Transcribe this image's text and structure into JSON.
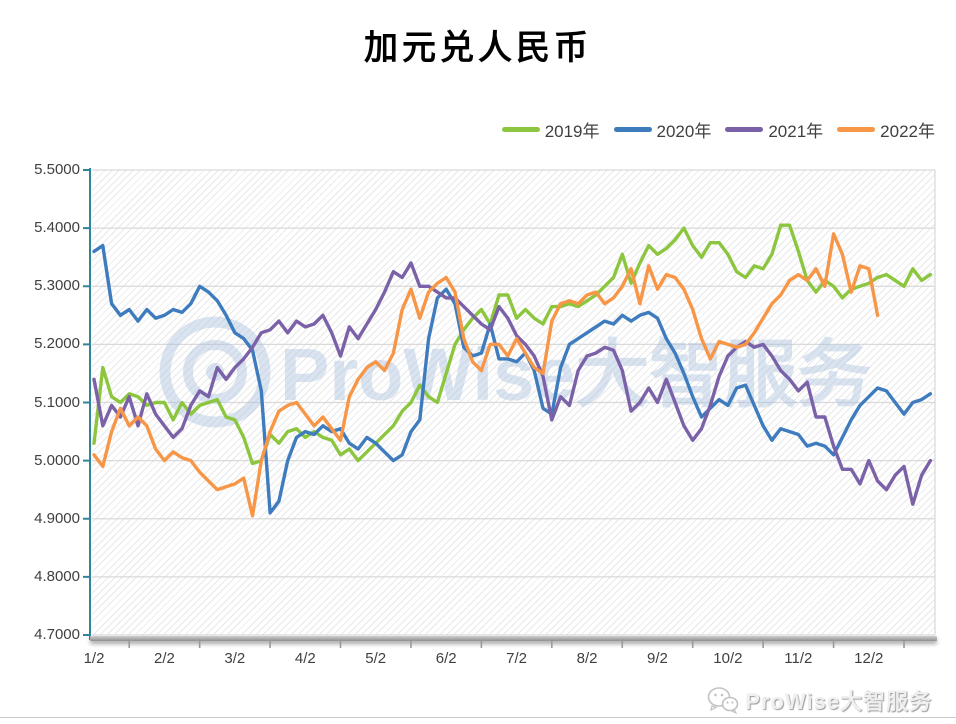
{
  "title": "加元兑人民币",
  "legend": [
    {
      "label": "2019年",
      "color": "#8CC63F"
    },
    {
      "label": "2020年",
      "color": "#3E7CBE"
    },
    {
      "label": "2021年",
      "color": "#7B62A8"
    },
    {
      "label": "2022年",
      "color": "#F79646"
    }
  ],
  "watermark": {
    "text": "ProWise大智服务",
    "color": "#A9BFDD"
  },
  "footer": {
    "brand": "ProWise大智服务"
  },
  "colors": {
    "axis_teal": "#31859B",
    "gridline": "#D9D9D9",
    "x_axis_bar": "#A6A6A6",
    "label_gray": "#404040"
  },
  "chart_data": {
    "type": "line",
    "title": "加元兑人民币",
    "xlabel": "",
    "ylabel": "",
    "ylim": [
      4.7,
      5.5
    ],
    "grid": true,
    "legend_position": "top-right",
    "y_tick_labels": [
      "5.5000",
      "5.4000",
      "5.3000",
      "5.2000",
      "5.1000",
      "5.0000",
      "4.9000",
      "4.8000",
      "4.7000"
    ],
    "y_ticks": [
      5.5,
      5.4,
      5.3,
      5.2,
      5.1,
      5.0,
      4.9,
      4.8,
      4.7
    ],
    "x_tick_labels": [
      "1/2",
      "2/2",
      "3/2",
      "4/2",
      "5/2",
      "6/2",
      "7/2",
      "8/2",
      "9/2",
      "10/2",
      "11/2",
      "12/2"
    ],
    "x_axis_span_months": 11.94,
    "sample_step_months": 0.125,
    "series": [
      {
        "name": "2019年",
        "color": "#8CC63F",
        "start_month": 0,
        "values": [
          5.03,
          5.16,
          5.11,
          5.1,
          5.115,
          5.11,
          5.095,
          5.1,
          5.1,
          5.07,
          5.1,
          5.08,
          5.095,
          5.1,
          5.105,
          5.075,
          5.07,
          5.04,
          4.995,
          5.0,
          5.045,
          5.03,
          5.05,
          5.055,
          5.04,
          5.05,
          5.04,
          5.035,
          5.01,
          5.02,
          5.0,
          5.015,
          5.03,
          5.045,
          5.06,
          5.085,
          5.1,
          5.13,
          5.11,
          5.1,
          5.15,
          5.2,
          5.225,
          5.245,
          5.26,
          5.235,
          5.285,
          5.285,
          5.245,
          5.26,
          5.245,
          5.235,
          5.265,
          5.265,
          5.27,
          5.265,
          5.275,
          5.285,
          5.3,
          5.315,
          5.355,
          5.305,
          5.34,
          5.37,
          5.355,
          5.365,
          5.38,
          5.4,
          5.37,
          5.35,
          5.375,
          5.375,
          5.355,
          5.325,
          5.315,
          5.335,
          5.33,
          5.355,
          5.405,
          5.405,
          5.36,
          5.31,
          5.29,
          5.31,
          5.3,
          5.28,
          5.295,
          5.3,
          5.305,
          5.315,
          5.32,
          5.31,
          5.3,
          5.33,
          5.31,
          5.32
        ]
      },
      {
        "name": "2020年",
        "color": "#3E7CBE",
        "start_month": 0,
        "values": [
          5.36,
          5.37,
          5.27,
          5.25,
          5.26,
          5.24,
          5.26,
          5.245,
          5.25,
          5.26,
          5.255,
          5.27,
          5.3,
          5.29,
          5.275,
          5.25,
          5.22,
          5.21,
          5.19,
          5.12,
          4.91,
          4.93,
          5.0,
          5.04,
          5.05,
          5.045,
          5.06,
          5.05,
          5.055,
          5.03,
          5.02,
          5.04,
          5.03,
          5.015,
          5.0,
          5.01,
          5.05,
          5.07,
          5.21,
          5.28,
          5.295,
          5.27,
          5.195,
          5.18,
          5.185,
          5.235,
          5.175,
          5.175,
          5.17,
          5.185,
          5.155,
          5.09,
          5.08,
          5.16,
          5.2,
          5.21,
          5.22,
          5.23,
          5.24,
          5.235,
          5.25,
          5.24,
          5.25,
          5.255,
          5.245,
          5.21,
          5.185,
          5.15,
          5.11,
          5.075,
          5.09,
          5.105,
          5.095,
          5.125,
          5.13,
          5.095,
          5.06,
          5.035,
          5.055,
          5.05,
          5.045,
          5.025,
          5.03,
          5.025,
          5.01,
          5.04,
          5.07,
          5.095,
          5.11,
          5.125,
          5.12,
          5.1,
          5.08,
          5.1,
          5.105,
          5.115
        ]
      },
      {
        "name": "2021年",
        "color": "#7B62A8",
        "start_month": 0,
        "values": [
          5.14,
          5.06,
          5.095,
          5.075,
          5.11,
          5.06,
          5.115,
          5.08,
          5.06,
          5.04,
          5.055,
          5.095,
          5.12,
          5.11,
          5.16,
          5.14,
          5.16,
          5.175,
          5.195,
          5.22,
          5.225,
          5.24,
          5.22,
          5.24,
          5.23,
          5.235,
          5.25,
          5.22,
          5.18,
          5.23,
          5.21,
          5.235,
          5.26,
          5.29,
          5.325,
          5.315,
          5.34,
          5.3,
          5.3,
          5.29,
          5.28,
          5.28,
          5.265,
          5.25,
          5.235,
          5.225,
          5.265,
          5.245,
          5.215,
          5.2,
          5.18,
          5.145,
          5.07,
          5.11,
          5.095,
          5.155,
          5.18,
          5.185,
          5.195,
          5.19,
          5.155,
          5.085,
          5.1,
          5.125,
          5.1,
          5.14,
          5.1,
          5.06,
          5.035,
          5.055,
          5.095,
          5.145,
          5.18,
          5.195,
          5.205,
          5.195,
          5.2,
          5.18,
          5.155,
          5.14,
          5.12,
          5.135,
          5.075,
          5.075,
          5.025,
          4.985,
          4.985,
          4.96,
          5.0,
          4.965,
          4.95,
          4.975,
          4.99,
          4.925,
          4.975,
          5.0
        ]
      },
      {
        "name": "2022年",
        "color": "#F79646",
        "start_month": 0,
        "values": [
          5.01,
          4.99,
          5.05,
          5.09,
          5.06,
          5.075,
          5.06,
          5.02,
          5.0,
          5.015,
          5.005,
          5.0,
          4.98,
          4.965,
          4.95,
          4.955,
          4.96,
          4.97,
          4.905,
          5.0,
          5.05,
          5.085,
          5.095,
          5.1,
          5.08,
          5.06,
          5.075,
          5.055,
          5.035,
          5.11,
          5.14,
          5.16,
          5.17,
          5.155,
          5.185,
          5.26,
          5.295,
          5.245,
          5.29,
          5.305,
          5.315,
          5.29,
          5.21,
          5.17,
          5.155,
          5.2,
          5.2,
          5.18,
          5.21,
          5.185,
          5.16,
          5.15,
          5.24,
          5.27,
          5.275,
          5.27,
          5.285,
          5.29,
          5.27,
          5.28,
          5.3,
          5.33,
          5.27,
          5.335,
          5.295,
          5.32,
          5.315,
          5.295,
          5.26,
          5.21,
          5.175,
          5.205,
          5.2,
          5.195,
          5.2,
          5.22,
          5.245,
          5.27,
          5.285,
          5.31,
          5.32,
          5.31,
          5.33,
          5.3,
          5.39,
          5.355,
          5.29,
          5.335,
          5.33,
          5.25
        ]
      }
    ]
  }
}
